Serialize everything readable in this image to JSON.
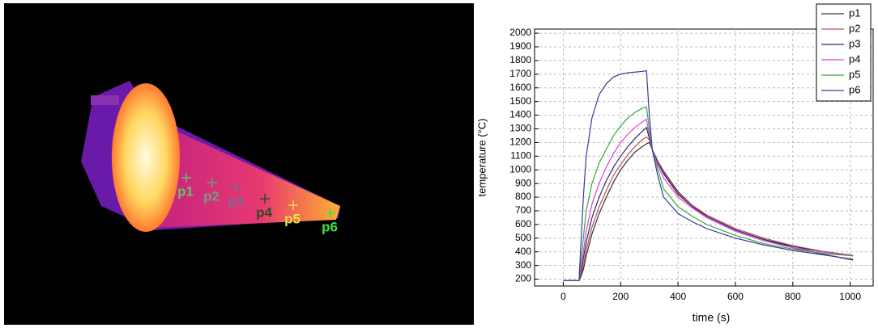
{
  "image_labels": [
    "p1",
    "p2",
    "p3",
    "p4",
    "p5",
    "p6"
  ],
  "chart_data": {
    "type": "line",
    "x_label": "time (s)",
    "y_label": "temperature (°C)",
    "x": [
      0,
      55,
      60,
      70,
      80,
      100,
      125,
      150,
      175,
      200,
      225,
      250,
      275,
      290,
      300,
      310,
      330,
      350,
      400,
      450,
      500,
      600,
      700,
      800,
      900,
      1010
    ],
    "xlim": [
      -100,
      1080
    ],
    "xticks": [
      0,
      200,
      400,
      600,
      800,
      1000
    ],
    "ylim": [
      150,
      2030
    ],
    "yticks": [
      200,
      300,
      400,
      500,
      600,
      700,
      800,
      900,
      1000,
      1100,
      1200,
      1300,
      1400,
      1500,
      1600,
      1700,
      1800,
      1900,
      2000
    ],
    "grid": true,
    "legend": "top-right",
    "series": [
      {
        "name": "p1",
        "color": "#333333",
        "values": [
          190,
          190,
          210,
          270,
          370,
          530,
          680,
          800,
          910,
          1000,
          1070,
          1130,
          1170,
          1190,
          1200,
          1150,
          1060,
          990,
          840,
          740,
          660,
          560,
          490,
          430,
          385,
          340
        ]
      },
      {
        "name": "p2",
        "color": "#c0504d",
        "values": [
          190,
          190,
          220,
          300,
          410,
          580,
          730,
          850,
          960,
          1040,
          1110,
          1170,
          1220,
          1240,
          1220,
          1150,
          1060,
          980,
          830,
          740,
          670,
          570,
          500,
          445,
          405,
          375
        ]
      },
      {
        "name": "p3",
        "color": "#2a2a6a",
        "values": [
          190,
          190,
          230,
          350,
          470,
          650,
          800,
          920,
          1020,
          1100,
          1170,
          1230,
          1280,
          1310,
          1230,
          1150,
          1050,
          970,
          820,
          730,
          660,
          560,
          490,
          440,
          400,
          370
        ]
      },
      {
        "name": "p4",
        "color": "#e040e0",
        "values": [
          190,
          190,
          250,
          400,
          550,
          750,
          900,
          1020,
          1120,
          1200,
          1260,
          1310,
          1350,
          1370,
          1250,
          1150,
          1030,
          940,
          800,
          720,
          650,
          550,
          480,
          430,
          400,
          375
        ]
      },
      {
        "name": "p5",
        "color": "#3aa83a",
        "values": [
          190,
          190,
          300,
          500,
          700,
          900,
          1050,
          1150,
          1250,
          1320,
          1380,
          1420,
          1450,
          1460,
          1300,
          1150,
          1000,
          860,
          730,
          660,
          600,
          520,
          460,
          420,
          390,
          370
        ]
      },
      {
        "name": "p6",
        "color": "#3a3aa0",
        "values": [
          190,
          190,
          400,
          800,
          1100,
          1380,
          1550,
          1630,
          1680,
          1700,
          1710,
          1715,
          1720,
          1725,
          1400,
          1150,
          950,
          800,
          680,
          620,
          570,
          500,
          450,
          410,
          380,
          345
        ]
      }
    ]
  }
}
